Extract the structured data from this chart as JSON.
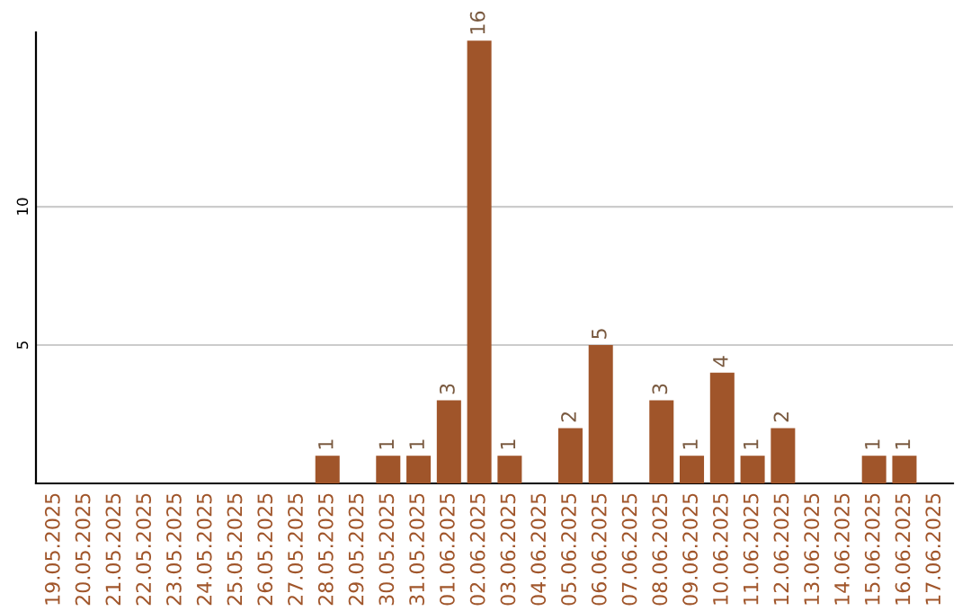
{
  "chart_data": {
    "type": "bar",
    "categories": [
      "19.05.2025",
      "20.05.2025",
      "21.05.2025",
      "22.05.2025",
      "23.05.2025",
      "24.05.2025",
      "25.05.2025",
      "26.05.2025",
      "27.05.2025",
      "28.05.2025",
      "29.05.2025",
      "30.05.2025",
      "31.05.2025",
      "01.06.2025",
      "02.06.2025",
      "03.06.2025",
      "04.06.2025",
      "05.06.2025",
      "06.06.2025",
      "07.06.2025",
      "08.06.2025",
      "09.06.2025",
      "10.06.2025",
      "11.06.2025",
      "12.06.2025",
      "13.06.2025",
      "14.06.2025",
      "15.06.2025",
      "16.06.2025",
      "17.06.2025"
    ],
    "values": [
      0,
      0,
      0,
      0,
      0,
      0,
      0,
      0,
      0,
      1,
      0,
      1,
      1,
      3,
      16,
      1,
      0,
      2,
      5,
      0,
      3,
      1,
      4,
      1,
      2,
      0,
      0,
      1,
      1,
      0
    ],
    "value_labels": [
      null,
      null,
      null,
      null,
      null,
      null,
      null,
      null,
      null,
      "1",
      null,
      "1",
      "1",
      "3",
      "16",
      "1",
      null,
      "2",
      "5",
      null,
      "3",
      "1",
      "4",
      "1",
      "2",
      null,
      null,
      "1",
      "1",
      null
    ],
    "color": "#a0552a",
    "ylim": [
      0,
      16.3
    ],
    "yticks": [
      5,
      10
    ],
    "grid": "y"
  }
}
